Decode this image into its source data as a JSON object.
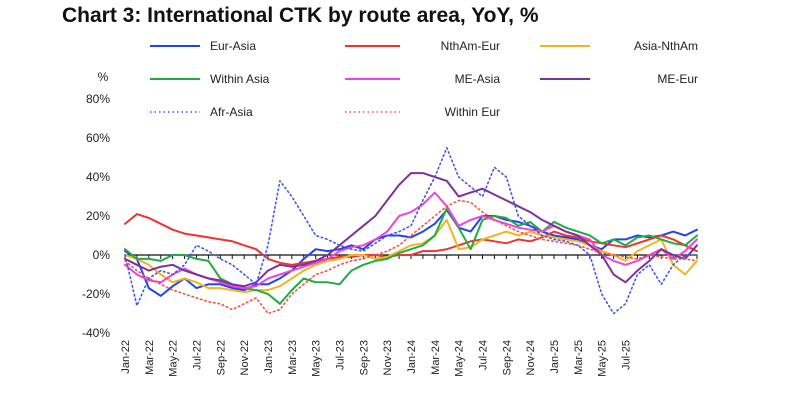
{
  "chart_data": {
    "type": "line",
    "title": "Chart 3: International CTK by route area, YoY, %",
    "ylabel": "%",
    "ylim": [
      -40,
      80
    ],
    "yticks": [
      -40,
      -20,
      0,
      20,
      40,
      60,
      80
    ],
    "ytick_labels": [
      "-40%",
      "-20%",
      "0%",
      "20%",
      "40%",
      "60%",
      "80%"
    ],
    "x_tick_labels": [
      "Jan-22",
      "Mar-22",
      "May-22",
      "Jul-22",
      "Sep-22",
      "Nov-22",
      "Jan-23",
      "Mar-23",
      "May-23",
      "Jul-23",
      "Sep-23",
      "Nov-23",
      "Jan-24",
      "Mar-24",
      "May-24",
      "Jul-24",
      "Sep-24",
      "Nov-24",
      "Jan-25",
      "Mar-25",
      "May-25",
      "Jul-25"
    ],
    "x_start": "Jan-22",
    "x_end": "Jul-25",
    "series": [
      {
        "name": "Eur-Asia",
        "color": "#2244ee",
        "dash": "solid",
        "values": [
          2,
          -2,
          -17,
          -21,
          -16,
          -12,
          -17,
          -15,
          -15,
          -17,
          -18,
          -15,
          -15,
          -12,
          -8,
          -2,
          3,
          2,
          3,
          5,
          3,
          8,
          10,
          10,
          9,
          12,
          16,
          23,
          14,
          12,
          20,
          20,
          18,
          17,
          15,
          12,
          10,
          9,
          8,
          5,
          3,
          8,
          8,
          10,
          9,
          10,
          12,
          10,
          13
        ]
      },
      {
        "name": "NthAm-Eur",
        "color": "#ee3333",
        "dash": "solid",
        "values": [
          16,
          21,
          19,
          16,
          13,
          11,
          10,
          9,
          8,
          7,
          5,
          3,
          -2,
          -4,
          -5,
          -4,
          -3,
          -2,
          -1,
          -1,
          0,
          0,
          -1,
          0,
          0,
          2,
          2,
          3,
          5,
          7,
          8,
          7,
          6,
          8,
          7,
          9,
          12,
          10,
          9,
          7,
          6,
          5,
          4,
          6,
          8,
          10,
          8,
          5,
          2
        ]
      },
      {
        "name": "Asia-NthAm",
        "color": "#f2b51e",
        "dash": "solid",
        "values": [
          0,
          -2,
          -5,
          -10,
          -14,
          -12,
          -14,
          -17,
          -17,
          -18,
          -19,
          -18,
          -18,
          -16,
          -12,
          -8,
          -5,
          -3,
          -2,
          0,
          0,
          -2,
          -1,
          2,
          5,
          6,
          10,
          18,
          3,
          4,
          8,
          10,
          12,
          10,
          12,
          10,
          9,
          8,
          7,
          5,
          2,
          0,
          -3,
          2,
          5,
          8,
          -5,
          -10,
          -3
        ]
      },
      {
        "name": "Within Asia",
        "color": "#22aa44",
        "dash": "solid",
        "values": [
          3,
          -2,
          -2,
          -3,
          0,
          0,
          -2,
          -3,
          -12,
          -15,
          -17,
          -18,
          -20,
          -25,
          -18,
          -12,
          -14,
          -14,
          -15,
          -8,
          -5,
          -3,
          -2,
          1,
          3,
          5,
          10,
          24,
          14,
          3,
          18,
          20,
          19,
          15,
          17,
          12,
          17,
          14,
          12,
          10,
          6,
          8,
          5,
          9,
          10,
          8,
          6,
          5,
          10
        ]
      },
      {
        "name": "ME-Asia",
        "color": "#ee44dd",
        "dash": "solid",
        "values": [
          -5,
          -10,
          -13,
          -14,
          -10,
          -7,
          -10,
          -12,
          -14,
          -16,
          -17,
          -16,
          -12,
          -10,
          -8,
          -6,
          -4,
          -2,
          2,
          4,
          5,
          8,
          12,
          20,
          22,
          26,
          32,
          25,
          15,
          18,
          20,
          18,
          16,
          14,
          13,
          12,
          15,
          12,
          10,
          8,
          0,
          -3,
          -5,
          -3,
          0,
          3,
          -2,
          2,
          8
        ]
      },
      {
        "name": "ME-Eur",
        "color": "#7a3399",
        "dash": "solid",
        "values": [
          -2,
          -5,
          -8,
          -6,
          -5,
          -8,
          -10,
          -12,
          -13,
          -15,
          -16,
          -14,
          -8,
          -5,
          -6,
          -5,
          -3,
          0,
          5,
          10,
          15,
          20,
          28,
          36,
          42,
          42,
          40,
          38,
          30,
          32,
          34,
          31,
          28,
          25,
          22,
          18,
          15,
          12,
          10,
          5,
          0,
          -10,
          -14,
          -8,
          -3,
          3,
          0,
          -2,
          5
        ]
      },
      {
        "name": "Afr-Asia",
        "color": "#4455ee",
        "dash": "dotted",
        "values": [
          0,
          -26,
          -12,
          -8,
          -10,
          -5,
          5,
          2,
          -2,
          -5,
          -10,
          -15,
          5,
          38,
          30,
          20,
          10,
          8,
          5,
          3,
          2,
          6,
          10,
          12,
          15,
          28,
          40,
          55,
          40,
          35,
          30,
          45,
          40,
          20,
          15,
          10,
          8,
          7,
          5,
          0,
          -20,
          -30,
          -25,
          -10,
          -5,
          -15,
          -5,
          0,
          0
        ]
      },
      {
        "name": "Within Eur",
        "color": "#ee5544",
        "dash": "dotted",
        "values": [
          -3,
          -8,
          -12,
          -15,
          -18,
          -20,
          -22,
          -24,
          -25,
          -28,
          -25,
          -22,
          -30,
          -28,
          -20,
          -15,
          -10,
          -8,
          -5,
          -3,
          -2,
          0,
          2,
          5,
          10,
          15,
          20,
          25,
          28,
          27,
          22,
          18,
          15,
          12,
          10,
          8,
          7,
          6,
          5,
          3,
          1,
          0,
          -1,
          -2,
          0,
          -1,
          -2,
          -2,
          -3
        ]
      }
    ],
    "legend": "top, three columns"
  }
}
